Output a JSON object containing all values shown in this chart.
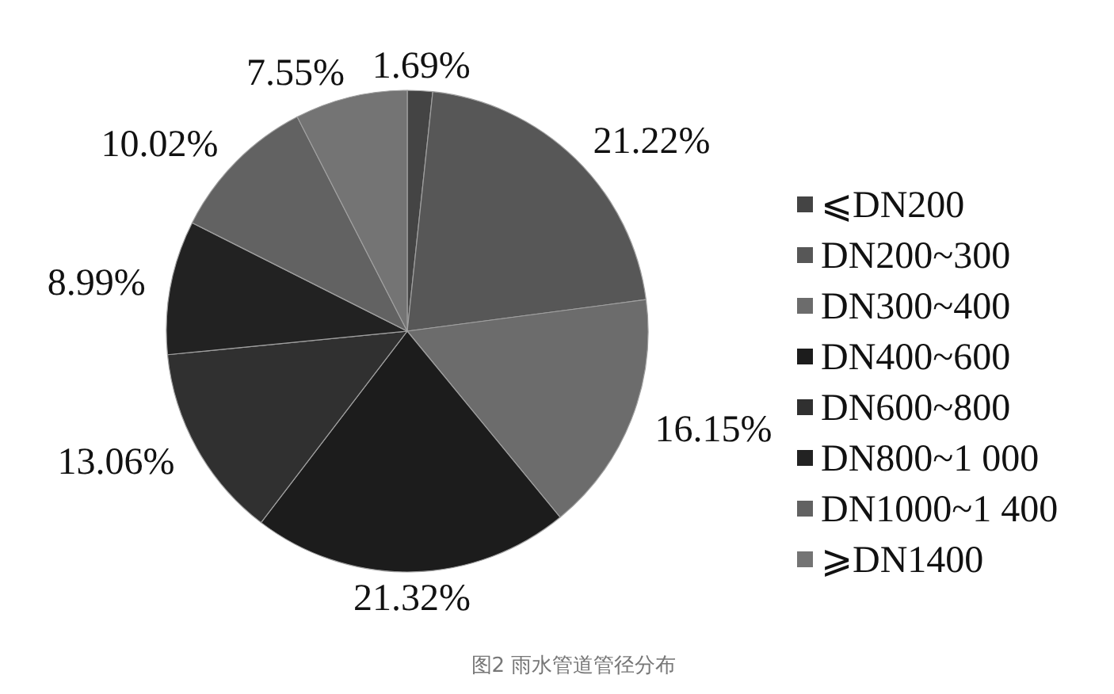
{
  "chart_data": {
    "type": "pie",
    "categories": [
      "⩽DN200",
      "DN200~300",
      "DN300~400",
      "DN400~600",
      "DN600~800",
      "DN800~1 000",
      "DN1000~1 400",
      "⩾DN1400"
    ],
    "values": [
      1.69,
      21.22,
      16.15,
      21.32,
      13.06,
      8.99,
      10.02,
      7.55
    ],
    "value_labels": [
      "1.69%",
      "21.22%",
      "16.15%",
      "21.32%",
      "13.06%",
      "8.99%",
      "10.02%",
      "7.55%"
    ],
    "colors": [
      "#444444",
      "#575757",
      "#6c6c6c",
      "#1c1c1c",
      "#303030",
      "#222222",
      "#626262",
      "#747474"
    ],
    "legend": "right",
    "annotations": [
      "图2 雨水管道管径分布"
    ]
  }
}
